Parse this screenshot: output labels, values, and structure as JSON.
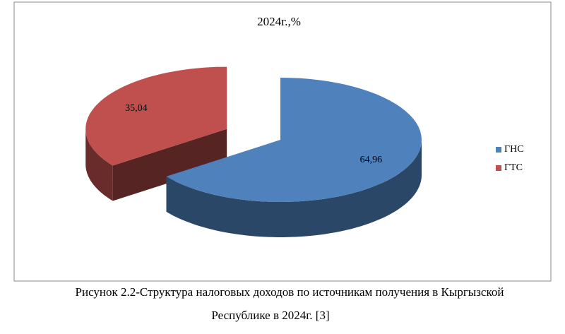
{
  "chart_data": {
    "type": "pie",
    "title": "2024г.,%",
    "categories": [
      "ГНС",
      "ГТС"
    ],
    "values": [
      64.96,
      35.04
    ],
    "value_labels": [
      "64,96",
      "35,04"
    ],
    "colors": [
      "#4f81bd",
      "#c0504d"
    ],
    "legend": "right"
  },
  "caption": [
    "Рисунок 2.2-Структура налоговых доходов по источникам получения в Кыргызской",
    "Республике в 2024г. [3]"
  ]
}
